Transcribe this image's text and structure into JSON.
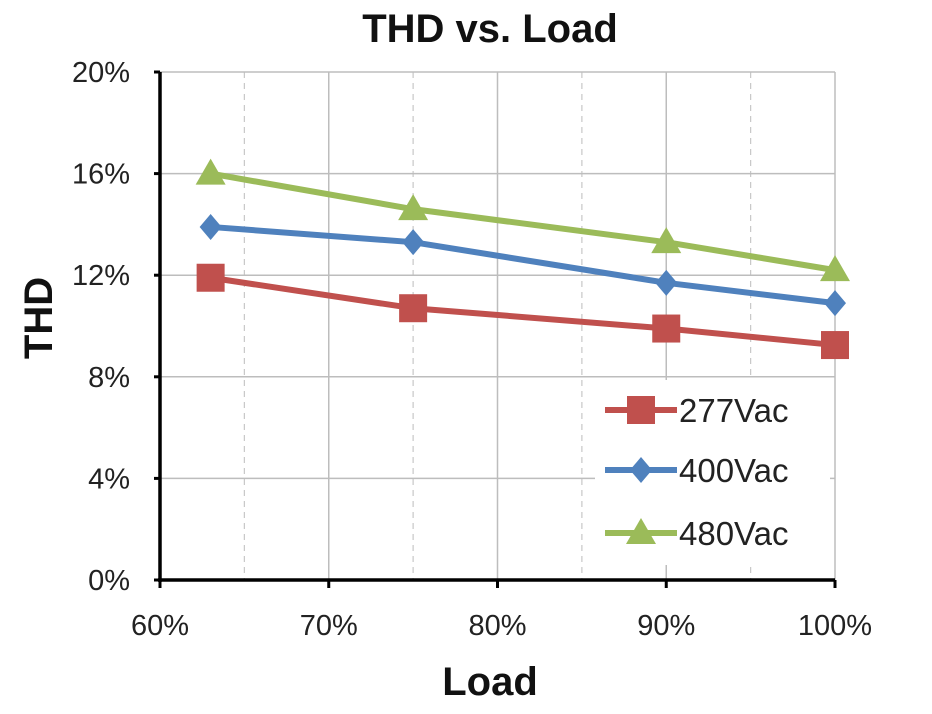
{
  "chart_data": {
    "type": "line",
    "title": "THD vs. Load",
    "xlabel": "Load",
    "ylabel": "THD",
    "xlim": [
      60,
      100
    ],
    "ylim": [
      0,
      20
    ],
    "x_ticks": [
      60,
      70,
      80,
      90,
      100
    ],
    "x_tick_labels": [
      "60%",
      "70%",
      "80%",
      "90%",
      "100%"
    ],
    "y_ticks": [
      0,
      4,
      8,
      12,
      16,
      20
    ],
    "y_tick_labels": [
      "0%",
      "4%",
      "8%",
      "12%",
      "16%",
      "20%"
    ],
    "grid": true,
    "legend_position": "bottom-right",
    "x": [
      63,
      75,
      90,
      100
    ],
    "series": [
      {
        "name": "277Vac",
        "values": [
          11.9,
          10.7,
          9.9,
          9.25
        ],
        "color": "#c0504d",
        "marker": "square"
      },
      {
        "name": "400Vac",
        "values": [
          13.9,
          13.3,
          11.7,
          10.9
        ],
        "color": "#4f81bd",
        "marker": "diamond"
      },
      {
        "name": "480Vac",
        "values": [
          16.0,
          14.6,
          13.3,
          12.2
        ],
        "color": "#9bbb59",
        "marker": "triangle"
      }
    ]
  }
}
